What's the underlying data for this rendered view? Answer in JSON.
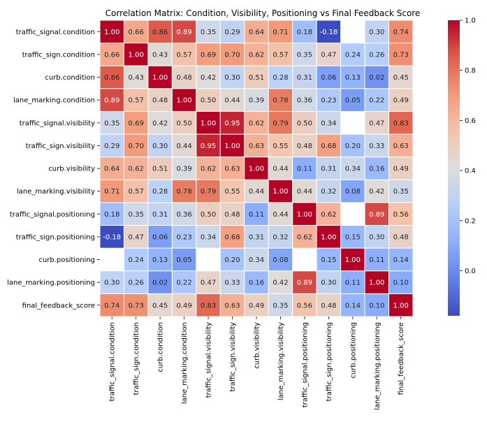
{
  "chart_data": {
    "type": "heatmap",
    "title": "Correlation Matrix: Condition, Visibility, Positioning vs Final Feedback Score",
    "labels": [
      "traffic_signal.condition",
      "traffic_sign.condition",
      "curb.condition",
      "lane_marking.condition",
      "traffic_signal.visibility",
      "traffic_sign.visibility",
      "curb.visibility",
      "lane_marking.visibility",
      "traffic_signal.positioning",
      "traffic_sign.positioning",
      "curb.positioning",
      "lane_marking.positioning",
      "final_feedback_score"
    ],
    "values": [
      [
        1.0,
        0.66,
        0.86,
        0.89,
        0.35,
        0.29,
        0.64,
        0.71,
        0.18,
        -0.18,
        null,
        0.3,
        0.74
      ],
      [
        0.66,
        1.0,
        0.43,
        0.57,
        0.69,
        0.7,
        0.62,
        0.57,
        0.35,
        0.47,
        0.24,
        0.26,
        0.73
      ],
      [
        0.86,
        0.43,
        1.0,
        0.48,
        0.42,
        0.3,
        0.51,
        0.28,
        0.31,
        0.06,
        0.13,
        0.02,
        0.45
      ],
      [
        0.89,
        0.57,
        0.48,
        1.0,
        0.5,
        0.44,
        0.39,
        0.78,
        0.36,
        0.23,
        0.05,
        0.22,
        0.49
      ],
      [
        0.35,
        0.69,
        0.42,
        0.5,
        1.0,
        0.95,
        0.62,
        0.79,
        0.5,
        0.34,
        null,
        0.47,
        0.83
      ],
      [
        0.29,
        0.7,
        0.3,
        0.44,
        0.95,
        1.0,
        0.63,
        0.55,
        0.48,
        0.68,
        0.2,
        0.33,
        0.63
      ],
      [
        0.64,
        0.62,
        0.51,
        0.39,
        0.62,
        0.63,
        1.0,
        0.44,
        0.11,
        0.31,
        0.34,
        0.16,
        0.49
      ],
      [
        0.71,
        0.57,
        0.28,
        0.78,
        0.79,
        0.55,
        0.44,
        1.0,
        0.44,
        0.32,
        0.08,
        0.42,
        0.35
      ],
      [
        0.18,
        0.35,
        0.31,
        0.36,
        0.5,
        0.48,
        0.11,
        0.44,
        1.0,
        0.62,
        null,
        0.89,
        0.56
      ],
      [
        -0.18,
        0.47,
        0.06,
        0.23,
        0.34,
        0.68,
        0.31,
        0.32,
        0.62,
        1.0,
        0.15,
        0.3,
        0.48
      ],
      [
        null,
        0.24,
        0.13,
        0.05,
        null,
        0.2,
        0.34,
        0.08,
        null,
        0.15,
        1.0,
        0.11,
        0.14
      ],
      [
        0.3,
        0.26,
        0.02,
        0.22,
        0.47,
        0.33,
        0.16,
        0.42,
        0.89,
        0.3,
        0.11,
        1.0,
        0.1
      ],
      [
        0.74,
        0.73,
        0.45,
        0.49,
        0.83,
        0.63,
        0.49,
        0.35,
        0.56,
        0.48,
        0.14,
        0.1,
        1.0
      ]
    ],
    "value_format": "2 decimals",
    "colormap": "coolwarm",
    "vmin": -0.18,
    "vmax": 1.0,
    "colorbar_ticks": [
      0.0,
      0.2,
      0.4,
      0.6,
      0.8,
      1.0
    ],
    "colorbar_tick_labels": [
      "0.0",
      "0.2",
      "0.4",
      "0.6",
      "0.8",
      "1.0"
    ],
    "colorbar_position": "right",
    "grid": false,
    "xlabel": "",
    "ylabel": ""
  }
}
